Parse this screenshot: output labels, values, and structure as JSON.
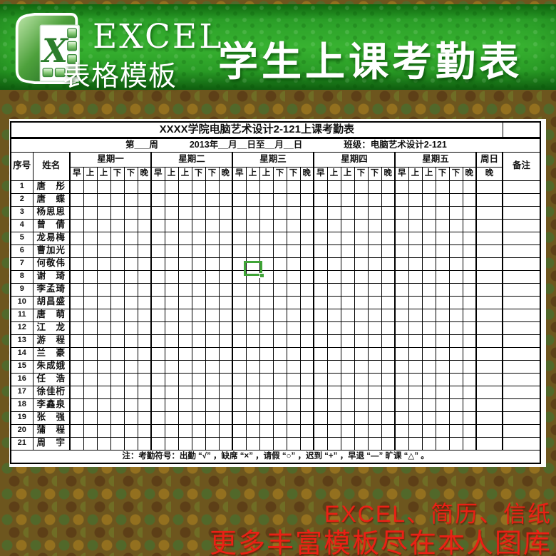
{
  "banner": {
    "brand_title": "EXCEL",
    "brand_subtitle": "表格模板",
    "main_title": "学生上课考勤表",
    "logo_letter": "X"
  },
  "sheet": {
    "title": "XXXX学院电脑艺术设计2-121上课考勤表",
    "week_label": "第___周",
    "date_label": "2013年__月__日至__月__日",
    "class_label": "班级：电脑艺术设计2-121",
    "col_index_label": "序号",
    "col_name_label": "姓名",
    "col_remark_label": "备注",
    "sunday_label": "周日",
    "sunday_sub_label": "晚",
    "day_groups": [
      "星期一",
      "星期二",
      "星期三",
      "星期四",
      "星期五"
    ],
    "day_sub_columns": [
      "早",
      "上",
      "上",
      "下",
      "下",
      "晚"
    ],
    "students": [
      {
        "no": "1",
        "name": "唐　彤"
      },
      {
        "no": "2",
        "name": "唐　蝶"
      },
      {
        "no": "3",
        "name": "杨思思"
      },
      {
        "no": "4",
        "name": "曾　倩"
      },
      {
        "no": "5",
        "name": "龙易梅"
      },
      {
        "no": "6",
        "name": "曹加光"
      },
      {
        "no": "7",
        "name": "何敬伟"
      },
      {
        "no": "8",
        "name": "谢　琦"
      },
      {
        "no": "9",
        "name": "李孟琦"
      },
      {
        "no": "10",
        "name": "胡昌盛"
      },
      {
        "no": "11",
        "name": "唐　萌"
      },
      {
        "no": "12",
        "name": "江　龙"
      },
      {
        "no": "13",
        "name": "游　程"
      },
      {
        "no": "14",
        "name": "兰　豪"
      },
      {
        "no": "15",
        "name": "朱成娥"
      },
      {
        "no": "16",
        "name": "任　浩"
      },
      {
        "no": "17",
        "name": "徐佳桁"
      },
      {
        "no": "18",
        "name": "李鑫泉"
      },
      {
        "no": "19",
        "name": "张　强"
      },
      {
        "no": "20",
        "name": "蒲　程"
      },
      {
        "no": "21",
        "name": "周　宇"
      }
    ],
    "note": "注：考勤符号：出勤 “√” ，缺席 “×” ，请假 “○” ，迟到 “+” ，早退 “—” 旷课 “△” 。"
  },
  "footer": {
    "line1": "EXCEL、简历、信纸",
    "line2": "更多丰富模板尽在本人图库"
  },
  "colors": {
    "banner_green": "#38b231",
    "selection_green": "#3fa437",
    "footer_red": "#ea2015",
    "camo_olive": "#6d561e"
  }
}
